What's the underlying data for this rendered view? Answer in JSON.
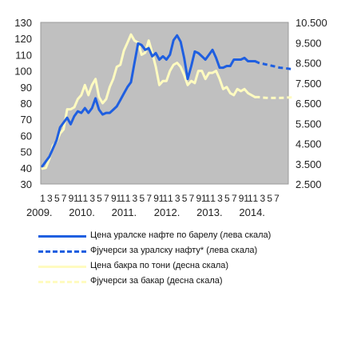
{
  "chart_data": {
    "type": "line",
    "title": "",
    "xlabel": "",
    "ylabel_left": "",
    "ylabel_right": "",
    "ylim_left": [
      30,
      130
    ],
    "ylim_right": [
      2500,
      10500
    ],
    "yticks_left": [
      "30",
      "40",
      "50",
      "60",
      "70",
      "80",
      "90",
      "100",
      "110",
      "120",
      "130"
    ],
    "yticks_right": [
      "2.500",
      "3.500",
      "4.500",
      "5.500",
      "6.500",
      "7.500",
      "8.500",
      "9.500",
      "10.500"
    ],
    "x_month_ticks": [
      "1",
      "3",
      "5",
      "7",
      "9",
      "11",
      "1",
      "3",
      "5",
      "7",
      "9",
      "11",
      "1",
      "3",
      "5",
      "7",
      "9",
      "11",
      "1",
      "3",
      "5",
      "7",
      "9",
      "11",
      "1",
      "3",
      "5",
      "7",
      "9",
      "11",
      "1",
      "3",
      "5",
      "7"
    ],
    "x_year_labels": [
      "2009.",
      "2010.",
      "2011.",
      "2012.",
      "2013.",
      "2014."
    ],
    "grid": false,
    "plot_background": "#c0c0c0",
    "legend_position": "bottom",
    "x_start": "2009-01",
    "x_end": "2014-12",
    "series": [
      {
        "name": "Цена уралске нафте по барелу (лева скала)",
        "axis": "left",
        "style": "solid",
        "color": "#1f5fe0",
        "x": [
          "2009-01",
          "2009-02",
          "2009-03",
          "2009-04",
          "2009-05",
          "2009-06",
          "2009-07",
          "2009-08",
          "2009-09",
          "2009-10",
          "2009-11",
          "2009-12",
          "2010-01",
          "2010-02",
          "2010-03",
          "2010-04",
          "2010-05",
          "2010-06",
          "2010-07",
          "2010-08",
          "2010-09",
          "2010-10",
          "2010-11",
          "2010-12",
          "2011-01",
          "2011-02",
          "2011-03",
          "2011-04",
          "2011-05",
          "2011-06",
          "2011-07",
          "2011-08",
          "2011-09",
          "2011-10",
          "2011-11",
          "2011-12",
          "2012-01",
          "2012-02",
          "2012-03",
          "2012-04",
          "2012-05",
          "2012-06",
          "2012-07",
          "2012-08",
          "2012-09",
          "2012-10",
          "2012-11",
          "2012-12",
          "2013-01",
          "2013-02",
          "2013-03",
          "2013-04",
          "2013-05",
          "2013-06",
          "2013-07",
          "2013-08",
          "2013-09",
          "2013-10",
          "2013-11",
          "2013-12",
          "2014-01"
        ],
        "values": [
          41,
          44,
          47,
          52,
          57,
          65,
          68,
          71,
          67,
          72,
          75,
          74,
          77,
          74,
          77,
          83,
          76,
          73,
          74,
          74,
          76,
          78,
          82,
          86,
          90,
          93,
          105,
          117,
          116,
          113,
          114,
          109,
          111,
          107,
          109,
          107,
          110,
          119,
          122,
          118,
          108,
          95,
          103,
          112,
          111,
          109,
          107,
          110,
          113,
          108,
          102,
          102,
          103,
          103,
          107,
          107,
          107,
          108,
          106,
          106,
          106
        ]
      },
      {
        "name": "Фјучерси за уралску нафту* (лева скала)",
        "axis": "left",
        "style": "dashed",
        "color": "#1f5fe0",
        "x": [
          "2014-01",
          "2014-02",
          "2014-03",
          "2014-04",
          "2014-05",
          "2014-06",
          "2014-07",
          "2014-08",
          "2014-09",
          "2014-10",
          "2014-11",
          "2014-12"
        ],
        "values": [
          106,
          105,
          104.5,
          104,
          103.5,
          103,
          102.5,
          102,
          101.8,
          101.5,
          101.2,
          101
        ]
      },
      {
        "name": "Цена бакра по тони (десна скала)",
        "axis": "right",
        "style": "solid",
        "color": "#fffbc0",
        "x": [
          "2009-01",
          "2009-02",
          "2009-03",
          "2009-04",
          "2009-05",
          "2009-06",
          "2009-07",
          "2009-08",
          "2009-09",
          "2009-10",
          "2009-11",
          "2009-12",
          "2010-01",
          "2010-02",
          "2010-03",
          "2010-04",
          "2010-05",
          "2010-06",
          "2010-07",
          "2010-08",
          "2010-09",
          "2010-10",
          "2010-11",
          "2010-12",
          "2011-01",
          "2011-02",
          "2011-03",
          "2011-04",
          "2011-05",
          "2011-06",
          "2011-07",
          "2011-08",
          "2011-09",
          "2011-10",
          "2011-11",
          "2011-12",
          "2012-01",
          "2012-02",
          "2012-03",
          "2012-04",
          "2012-05",
          "2012-06",
          "2012-07",
          "2012-08",
          "2012-09",
          "2012-10",
          "2012-11",
          "2012-12",
          "2013-01",
          "2013-02",
          "2013-03",
          "2013-04",
          "2013-05",
          "2013-06",
          "2013-07",
          "2013-08",
          "2013-09",
          "2013-10",
          "2013-11",
          "2013-12",
          "2014-01"
        ],
        "values": [
          3260,
          3300,
          3750,
          4400,
          4600,
          5000,
          5200,
          6200,
          6200,
          6300,
          6700,
          6900,
          7400,
          6900,
          7400,
          7700,
          6800,
          6500,
          6700,
          7300,
          7700,
          8300,
          8400,
          9100,
          9500,
          9900,
          9600,
          9500,
          8900,
          9000,
          9600,
          9000,
          8300,
          7400,
          7600,
          7600,
          8100,
          8400,
          8500,
          8300,
          7900,
          7400,
          7600,
          7500,
          8100,
          8100,
          7700,
          8000,
          8000,
          8100,
          7700,
          7200,
          7300,
          7000,
          6900,
          7200,
          7100,
          7200,
          7000,
          6900,
          6800
        ]
      },
      {
        "name": "Фјучерси за бакар (десна скала)",
        "axis": "right",
        "style": "dashed",
        "color": "#fffbc0",
        "x": [
          "2014-01",
          "2014-02",
          "2014-03",
          "2014-04",
          "2014-05",
          "2014-06",
          "2014-07",
          "2014-08",
          "2014-09",
          "2014-10",
          "2014-11",
          "2014-12"
        ],
        "values": [
          6800,
          6800,
          6780,
          6770,
          6760,
          6760,
          6760,
          6760,
          6770,
          6780,
          6790,
          6800
        ]
      }
    ]
  }
}
